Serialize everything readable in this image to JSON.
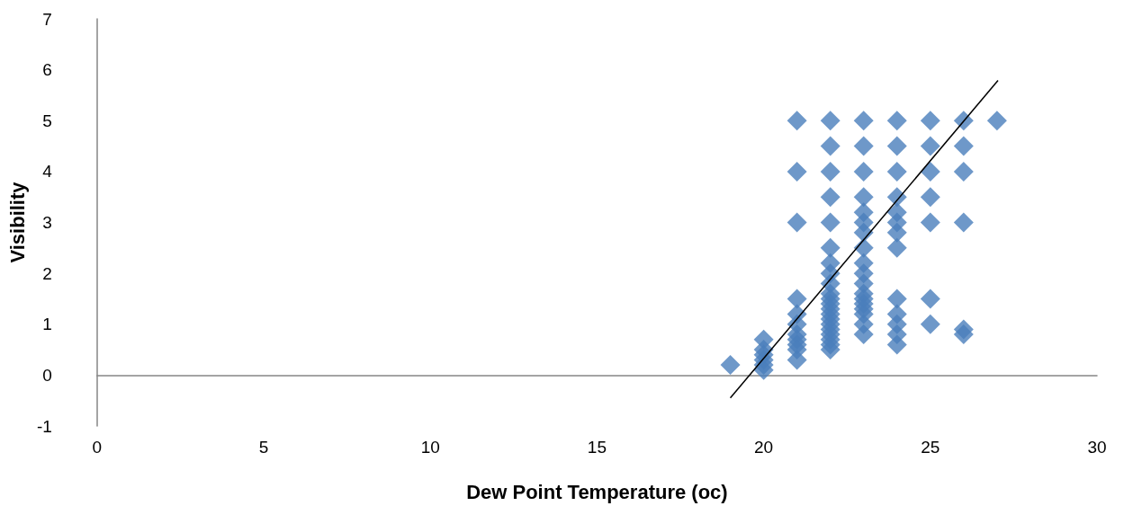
{
  "chart_data": {
    "type": "scatter",
    "xlabel": "Dew Point Temperature (oc)",
    "ylabel": "Visibility",
    "marker": "diamond",
    "xlim": [
      0,
      30
    ],
    "xticks": [
      0,
      5,
      10,
      15,
      20,
      25,
      30
    ],
    "ylim": [
      -1,
      7
    ],
    "yticks": [
      -1,
      0,
      1,
      2,
      3,
      4,
      5,
      6,
      7
    ],
    "series": [
      {
        "color": "#4a7ebb",
        "x": [
          19,
          20,
          20,
          20,
          20,
          20,
          20,
          21,
          21,
          21,
          21,
          21,
          21,
          21,
          21,
          21,
          21,
          21,
          22,
          22,
          22,
          22,
          22,
          22,
          22,
          22,
          22,
          22,
          22,
          22,
          22,
          22,
          22,
          22,
          22,
          22,
          22,
          22,
          22,
          23,
          23,
          23,
          23,
          23,
          23,
          23,
          23,
          23,
          23,
          23,
          23,
          23,
          23,
          23,
          23,
          23,
          23,
          24,
          24,
          24,
          24,
          24,
          24,
          24,
          24,
          24,
          24,
          24,
          24,
          24,
          25,
          25,
          25,
          25,
          25,
          25,
          25,
          26,
          26,
          26,
          26,
          26,
          26,
          27
        ],
        "values": [
          0.2,
          0.7,
          0.5,
          0.4,
          0.3,
          0.2,
          0.1,
          5,
          4,
          3,
          1.5,
          1.2,
          1.0,
          0.8,
          0.7,
          0.6,
          0.5,
          0.3,
          5,
          4.5,
          4,
          3.5,
          3,
          2.5,
          2.2,
          2,
          1.8,
          1.6,
          1.5,
          1.4,
          1.3,
          1.2,
          1.1,
          1.0,
          0.9,
          0.8,
          0.7,
          0.6,
          0.5,
          5,
          4.5,
          4,
          3.5,
          3.2,
          3,
          2.8,
          2.5,
          2.2,
          2,
          1.8,
          1.6,
          1.5,
          1.4,
          1.3,
          1.2,
          1.0,
          0.8,
          5,
          4.5,
          4,
          3.5,
          3.2,
          3,
          2.8,
          2.5,
          1.5,
          1.2,
          1.0,
          0.8,
          0.6,
          5,
          4.5,
          4,
          3.5,
          3,
          1.5,
          1.0,
          5,
          4.5,
          4,
          3,
          0.9,
          0.8,
          5
        ]
      },
      {
        "type": "line",
        "color": "#000000",
        "marker": "none",
        "x": [
          19,
          27.03
        ],
        "values": [
          -0.45,
          5.79
        ]
      }
    ]
  }
}
